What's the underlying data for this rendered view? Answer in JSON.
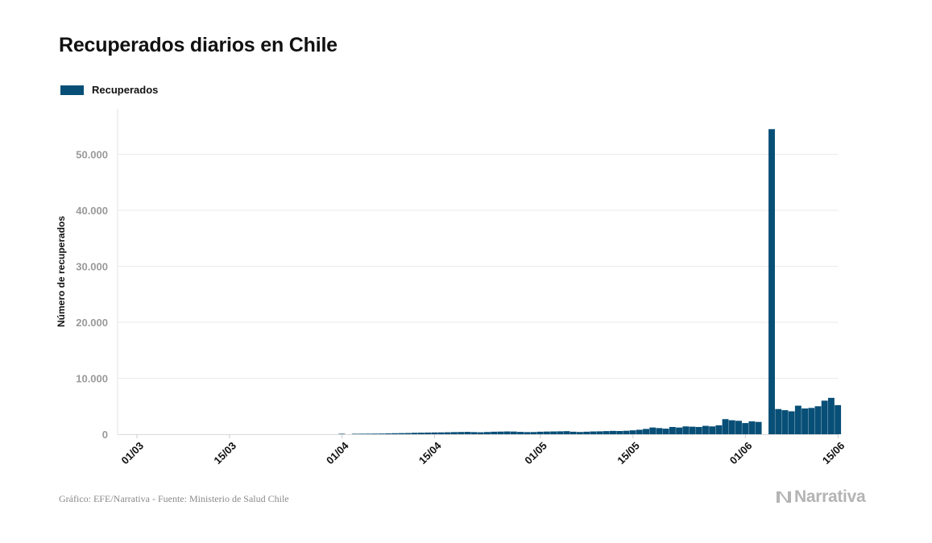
{
  "title": "Recuperados diarios en Chile",
  "legend": {
    "label": "Recuperados",
    "color": "#084f77"
  },
  "footer": {
    "source": "Gráfico: EFE/Narrativa - Fuente: Ministerio de Salud Chile",
    "brand": "Narrativa",
    "brand_icon": "narrativa-logo-icon"
  },
  "chart_data": {
    "type": "bar",
    "title": "Recuperados diarios en Chile",
    "xlabel": "",
    "ylabel": "Número de recuperados",
    "ylim": [
      0,
      55000
    ],
    "grid": true,
    "legend_position": "top-left",
    "yticks": [
      0,
      10000,
      20000,
      30000,
      40000,
      50000
    ],
    "ytick_labels": [
      "0",
      "10.000",
      "20.000",
      "30.000",
      "40.000",
      "50.000"
    ],
    "xtick_labels": [
      "01/03",
      "15/03",
      "01/04",
      "15/04",
      "01/05",
      "15/05",
      "01/06",
      "15/06"
    ],
    "categories": [
      "01/03",
      "02/03",
      "03/03",
      "04/03",
      "05/03",
      "06/03",
      "07/03",
      "08/03",
      "09/03",
      "10/03",
      "11/03",
      "12/03",
      "13/03",
      "14/03",
      "15/03",
      "16/03",
      "17/03",
      "18/03",
      "19/03",
      "20/03",
      "21/03",
      "22/03",
      "23/03",
      "24/03",
      "25/03",
      "26/03",
      "27/03",
      "28/03",
      "29/03",
      "30/03",
      "31/03",
      "01/04",
      "02/04",
      "03/04",
      "04/04",
      "05/04",
      "06/04",
      "07/04",
      "08/04",
      "09/04",
      "10/04",
      "11/04",
      "12/04",
      "13/04",
      "14/04",
      "15/04",
      "16/04",
      "17/04",
      "18/04",
      "19/04",
      "20/04",
      "21/04",
      "22/04",
      "23/04",
      "24/04",
      "25/04",
      "26/04",
      "27/04",
      "28/04",
      "29/04",
      "30/04",
      "01/05",
      "02/05",
      "03/05",
      "04/05",
      "05/05",
      "06/05",
      "07/05",
      "08/05",
      "09/05",
      "10/05",
      "11/05",
      "12/05",
      "13/05",
      "14/05",
      "15/05",
      "16/05",
      "17/05",
      "18/05",
      "19/05",
      "20/05",
      "21/05",
      "22/05",
      "23/05",
      "24/05",
      "25/05",
      "26/05",
      "27/05",
      "28/05",
      "29/05",
      "30/05",
      "31/05",
      "01/06",
      "02/06",
      "03/06",
      "04/06",
      "05/06",
      "06/06",
      "07/06",
      "08/06",
      "09/06",
      "10/06",
      "11/06",
      "12/06",
      "13/06",
      "14/06",
      "15/06",
      "16/06"
    ],
    "series": [
      {
        "name": "Recuperados",
        "color": "#084f77",
        "values": [
          0,
          0,
          0,
          0,
          0,
          0,
          0,
          0,
          0,
          0,
          0,
          0,
          0,
          0,
          0,
          0,
          0,
          0,
          0,
          0,
          0,
          0,
          0,
          0,
          0,
          0,
          0,
          0,
          0,
          0,
          0,
          80,
          0,
          80,
          90,
          100,
          110,
          120,
          150,
          180,
          200,
          220,
          260,
          280,
          300,
          320,
          330,
          350,
          380,
          400,
          420,
          380,
          350,
          400,
          450,
          470,
          500,
          480,
          420,
          380,
          390,
          450,
          480,
          500,
          520,
          550,
          450,
          400,
          450,
          500,
          520,
          560,
          600,
          580,
          620,
          700,
          800,
          950,
          1200,
          1100,
          1000,
          1300,
          1200,
          1400,
          1350,
          1300,
          1500,
          1400,
          1600,
          2700,
          2500,
          2400,
          2000,
          2300,
          2200,
          0,
          54500,
          4500,
          4300,
          4100,
          5100,
          4600,
          4700,
          5000,
          6000,
          6500,
          5200,
          0
        ]
      }
    ]
  }
}
